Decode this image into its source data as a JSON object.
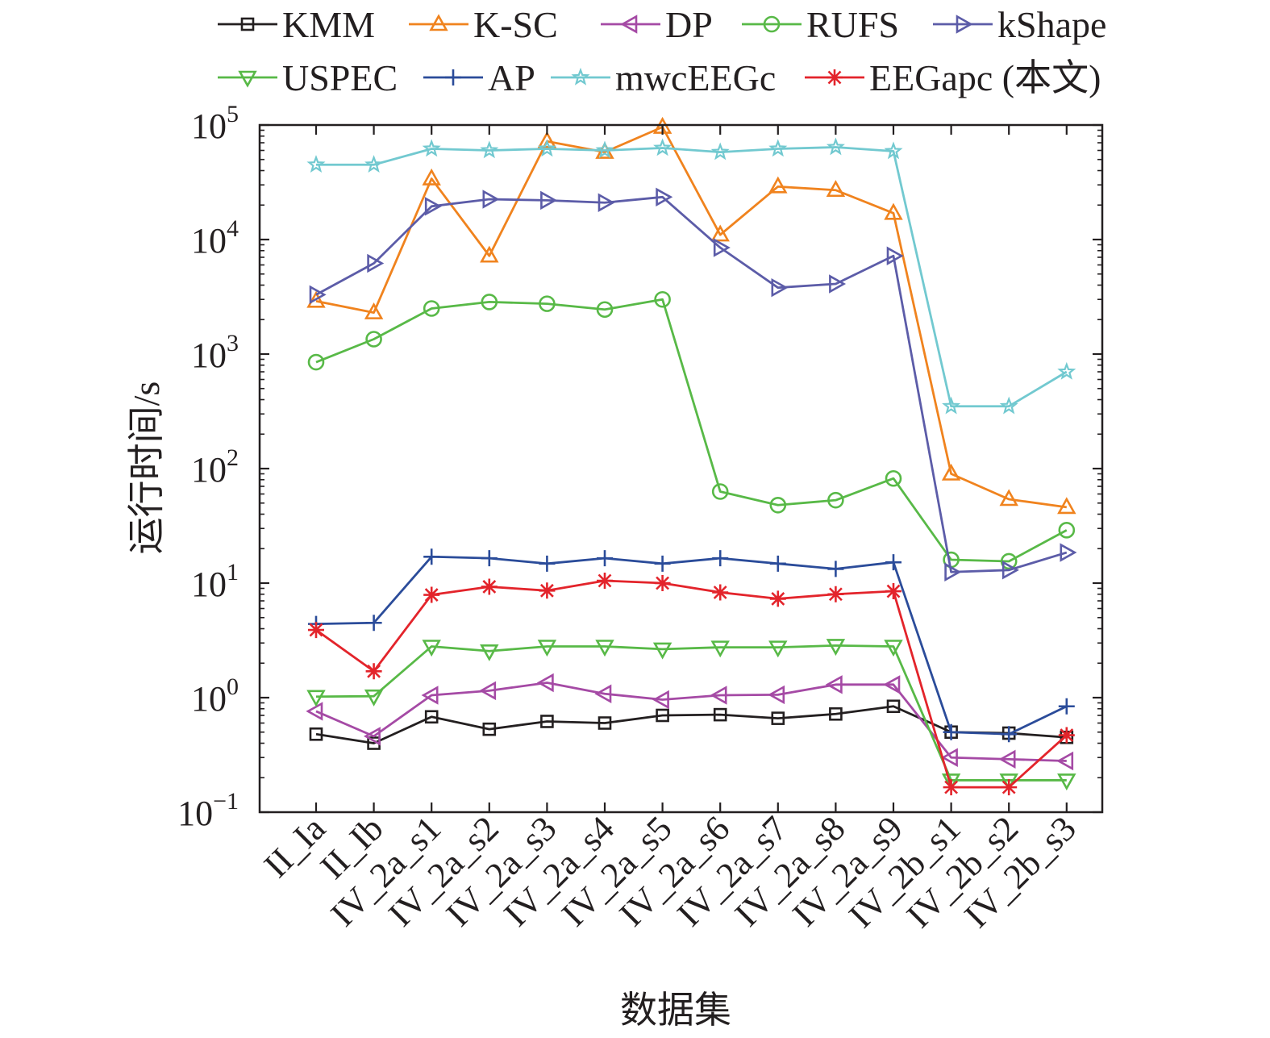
{
  "chart_data": {
    "type": "line",
    "title": "",
    "xlabel": "数据集",
    "ylabel": "运行时间/s",
    "yscale": "log",
    "ylim": [
      0.1,
      100000
    ],
    "y_ticks": [
      {
        "value": 0.1,
        "base": "10",
        "exp": "−1"
      },
      {
        "value": 1,
        "base": "10",
        "exp": "0"
      },
      {
        "value": 10,
        "base": "10",
        "exp": "1"
      },
      {
        "value": 100,
        "base": "10",
        "exp": "2"
      },
      {
        "value": 1000,
        "base": "10",
        "exp": "3"
      },
      {
        "value": 10000,
        "base": "10",
        "exp": "4"
      },
      {
        "value": 100000,
        "base": "10",
        "exp": "5"
      }
    ],
    "grid": false,
    "legend_position": "top",
    "categories": [
      "II_Ia",
      "II_Ib",
      "IV_2a_s1",
      "IV_2a_s2",
      "IV_2a_s3",
      "IV_2a_s4",
      "IV_2a_s5",
      "IV_2a_s6",
      "IV_2a_s7",
      "IV_2a_s8",
      "IV_2a_s9",
      "IV_2b_s1",
      "IV_2b_s2",
      "IV_2b_s3"
    ],
    "series": [
      {
        "name": "KMM",
        "color": "#231f20",
        "marker": "square",
        "values": [
          0.48,
          0.4,
          0.68,
          0.53,
          0.62,
          0.6,
          0.7,
          0.71,
          0.66,
          0.72,
          0.84,
          0.5,
          0.49,
          0.45
        ]
      },
      {
        "name": "K-SC",
        "color": "#f0831e",
        "marker": "triangle-up",
        "values": [
          2900,
          2300,
          34000,
          7200,
          72000,
          58000,
          96000,
          11000,
          29000,
          27000,
          17000,
          90,
          54,
          46
        ]
      },
      {
        "name": "DP",
        "color": "#a54aa5",
        "marker": "triangle-left",
        "values": [
          0.76,
          0.46,
          1.05,
          1.15,
          1.35,
          1.08,
          0.96,
          1.05,
          1.06,
          1.3,
          1.3,
          0.3,
          0.29,
          0.28
        ]
      },
      {
        "name": "RUFS",
        "color": "#58b947",
        "marker": "circle",
        "values": [
          850,
          1350,
          2500,
          2850,
          2750,
          2450,
          3000,
          63,
          48,
          53,
          82,
          16,
          15.5,
          29
        ]
      },
      {
        "name": "kShape",
        "color": "#5c5ca8",
        "marker": "triangle-right",
        "values": [
          3300,
          6200,
          19500,
          22500,
          22000,
          21000,
          23500,
          8500,
          3800,
          4100,
          7200,
          12.5,
          13,
          18.5
        ]
      },
      {
        "name": "USPEC",
        "color": "#58b947",
        "marker": "triangle-down",
        "values": [
          1.02,
          1.03,
          2.8,
          2.55,
          2.8,
          2.8,
          2.65,
          2.75,
          2.75,
          2.85,
          2.8,
          0.19,
          0.19,
          0.19
        ]
      },
      {
        "name": "AP",
        "color": "#2b4c9a",
        "marker": "plus",
        "values": [
          4.4,
          4.5,
          17,
          16.5,
          14.8,
          16.5,
          14.8,
          16.5,
          14.8,
          13.3,
          15.2,
          0.5,
          0.48,
          0.84
        ]
      },
      {
        "name": "mwcEEGc",
        "color": "#72c9d0",
        "marker": "star",
        "values": [
          45000,
          45000,
          62000,
          60000,
          62000,
          60000,
          63000,
          58000,
          62000,
          64000,
          59000,
          350,
          350,
          700
        ]
      },
      {
        "name": "EEGapc (本文)",
        "color": "#e3242b",
        "marker": "asterisk",
        "values": [
          3.9,
          1.7,
          7.9,
          9.3,
          8.6,
          10.5,
          10.0,
          8.3,
          7.3,
          8.0,
          8.5,
          0.165,
          0.165,
          0.47
        ]
      }
    ]
  }
}
